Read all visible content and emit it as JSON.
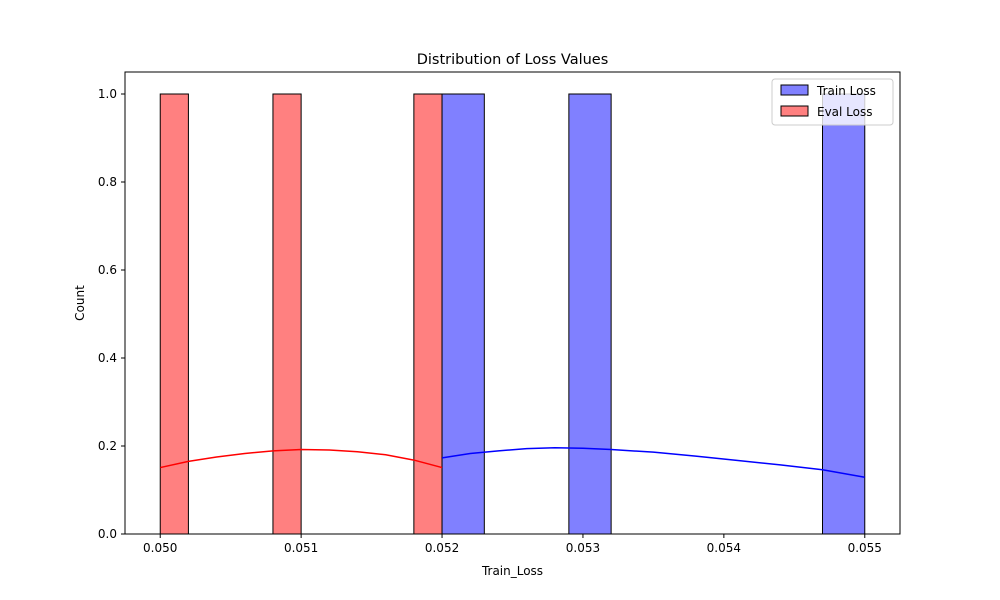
{
  "chart_data": {
    "type": "histogram",
    "title": "Distribution of Loss Values",
    "xlabel": "Train_Loss",
    "ylabel": "Count",
    "xlim": [
      0.04975,
      0.05525
    ],
    "ylim": [
      0,
      1.05
    ],
    "xticks": [
      0.05,
      0.051,
      0.052,
      0.053,
      0.054,
      0.055
    ],
    "xtick_labels": [
      "0.050",
      "0.051",
      "0.052",
      "0.053",
      "0.054",
      "0.055"
    ],
    "yticks": [
      0,
      0.2,
      0.4,
      0.6,
      0.8,
      1.0
    ],
    "ytick_labels": [
      "0.0",
      "0.2",
      "0.4",
      "0.6",
      "0.8",
      "1.0"
    ],
    "legend_position": "top-right",
    "series": [
      {
        "name": "Train Loss",
        "color": "#8080ff",
        "kde_color": "#0000ff",
        "bins": [
          {
            "x0": 0.052,
            "x1": 0.0523,
            "count": 1
          },
          {
            "x0": 0.0529,
            "x1": 0.0532,
            "count": 1
          },
          {
            "x0": 0.0547,
            "x1": 0.055,
            "count": 1
          }
        ],
        "kde": [
          {
            "x": 0.052,
            "y": 0.173
          },
          {
            "x": 0.0522,
            "y": 0.183
          },
          {
            "x": 0.0524,
            "y": 0.189
          },
          {
            "x": 0.0526,
            "y": 0.194
          },
          {
            "x": 0.0528,
            "y": 0.196
          },
          {
            "x": 0.053,
            "y": 0.195
          },
          {
            "x": 0.0532,
            "y": 0.192
          },
          {
            "x": 0.0535,
            "y": 0.186
          },
          {
            "x": 0.0538,
            "y": 0.177
          },
          {
            "x": 0.0541,
            "y": 0.167
          },
          {
            "x": 0.0544,
            "y": 0.157
          },
          {
            "x": 0.0547,
            "y": 0.146
          },
          {
            "x": 0.055,
            "y": 0.129
          }
        ]
      },
      {
        "name": "Eval Loss",
        "color": "#ff8080",
        "kde_color": "#ff0000",
        "bins": [
          {
            "x0": 0.05,
            "x1": 0.0502,
            "count": 1
          },
          {
            "x0": 0.0508,
            "x1": 0.051,
            "count": 1
          },
          {
            "x0": 0.0518,
            "x1": 0.052,
            "count": 1
          }
        ],
        "kde": [
          {
            "x": 0.05,
            "y": 0.151
          },
          {
            "x": 0.0502,
            "y": 0.165
          },
          {
            "x": 0.0504,
            "y": 0.175
          },
          {
            "x": 0.0506,
            "y": 0.183
          },
          {
            "x": 0.0508,
            "y": 0.189
          },
          {
            "x": 0.051,
            "y": 0.192
          },
          {
            "x": 0.0512,
            "y": 0.191
          },
          {
            "x": 0.0514,
            "y": 0.187
          },
          {
            "x": 0.0516,
            "y": 0.18
          },
          {
            "x": 0.0518,
            "y": 0.168
          },
          {
            "x": 0.052,
            "y": 0.151
          }
        ]
      }
    ]
  }
}
